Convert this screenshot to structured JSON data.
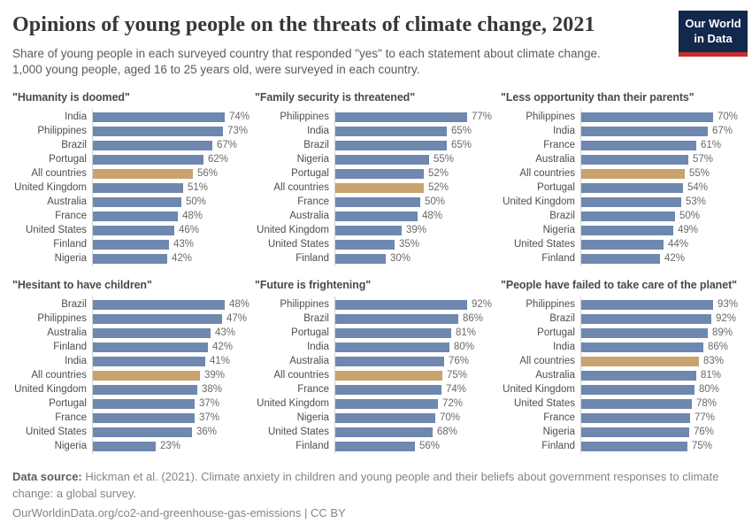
{
  "header": {
    "title": "Opinions of young people on the threats of climate change, 2021",
    "subtitle_line1": "Share of young people in each surveyed country that responded \"yes\" to each statement about climate change.",
    "subtitle_line2": "1,000 young people, aged 16 to 25 years old, were surveyed in each country.",
    "logo": {
      "line1": "Our World",
      "line2": "in Data"
    }
  },
  "colors": {
    "bar_blue": "#6e88af",
    "bar_highlight": "#c8a36e",
    "axis": "#d4d4d4",
    "logo_navy": "#12284c",
    "logo_red": "#c5312a"
  },
  "chart_data": [
    {
      "type": "bar",
      "orientation": "horizontal",
      "title": "\"Humanity is doomed\"",
      "unit": "%",
      "xlim": [
        0,
        74
      ],
      "highlight_category": "All countries",
      "categories": [
        "India",
        "Philippines",
        "Brazil",
        "Portugal",
        "All countries",
        "United Kingdom",
        "Australia",
        "France",
        "United States",
        "Finland",
        "Nigeria"
      ],
      "values": [
        74,
        73,
        67,
        62,
        56,
        51,
        50,
        48,
        46,
        43,
        42
      ]
    },
    {
      "type": "bar",
      "orientation": "horizontal",
      "title": "\"Family security is threatened\"",
      "unit": "%",
      "xlim": [
        0,
        77
      ],
      "highlight_category": "All countries",
      "categories": [
        "Philippines",
        "India",
        "Brazil",
        "Nigeria",
        "Portugal",
        "All countries",
        "France",
        "Australia",
        "United Kingdom",
        "United States",
        "Finland"
      ],
      "values": [
        77,
        65,
        65,
        55,
        52,
        52,
        50,
        48,
        39,
        35,
        30
      ]
    },
    {
      "type": "bar",
      "orientation": "horizontal",
      "title": "\"Less opportunity than their parents\"",
      "unit": "%",
      "xlim": [
        0,
        70
      ],
      "highlight_category": "All countries",
      "categories": [
        "Philippines",
        "India",
        "France",
        "Australia",
        "All countries",
        "Portugal",
        "United Kingdom",
        "Brazil",
        "Nigeria",
        "United States",
        "Finland"
      ],
      "values": [
        70,
        67,
        61,
        57,
        55,
        54,
        53,
        50,
        49,
        44,
        42
      ]
    },
    {
      "type": "bar",
      "orientation": "horizontal",
      "title": "\"Hesitant to have children\"",
      "unit": "%",
      "xlim": [
        0,
        48
      ],
      "highlight_category": "All countries",
      "categories": [
        "Brazil",
        "Philippines",
        "Australia",
        "Finland",
        "India",
        "All countries",
        "United Kingdom",
        "Portugal",
        "France",
        "United States",
        "Nigeria"
      ],
      "values": [
        48,
        47,
        43,
        42,
        41,
        39,
        38,
        37,
        37,
        36,
        23
      ]
    },
    {
      "type": "bar",
      "orientation": "horizontal",
      "title": "\"Future is frightening\"",
      "unit": "%",
      "xlim": [
        0,
        92
      ],
      "highlight_category": "All countries",
      "categories": [
        "Philippines",
        "Brazil",
        "Portugal",
        "India",
        "Australia",
        "All countries",
        "France",
        "United Kingdom",
        "Nigeria",
        "United States",
        "Finland"
      ],
      "values": [
        92,
        86,
        81,
        80,
        76,
        75,
        74,
        72,
        70,
        68,
        56
      ]
    },
    {
      "type": "bar",
      "orientation": "horizontal",
      "title": "\"People have failed to take care of the planet\"",
      "unit": "%",
      "xlim": [
        0,
        93
      ],
      "highlight_category": "All countries",
      "categories": [
        "Philippines",
        "Brazil",
        "Portugal",
        "India",
        "All countries",
        "Australia",
        "United Kingdom",
        "United States",
        "France",
        "Nigeria",
        "Finland"
      ],
      "values": [
        93,
        92,
        89,
        86,
        83,
        81,
        80,
        78,
        77,
        76,
        75
      ]
    }
  ],
  "footer": {
    "source_label": "Data source:",
    "source_text": " Hickman et al. (2021). Climate anxiety in children and young people and their beliefs about government responses to climate change: a global survey.",
    "link_text": "OurWorldinData.org/co2-and-greenhouse-gas-emissions | CC BY"
  }
}
